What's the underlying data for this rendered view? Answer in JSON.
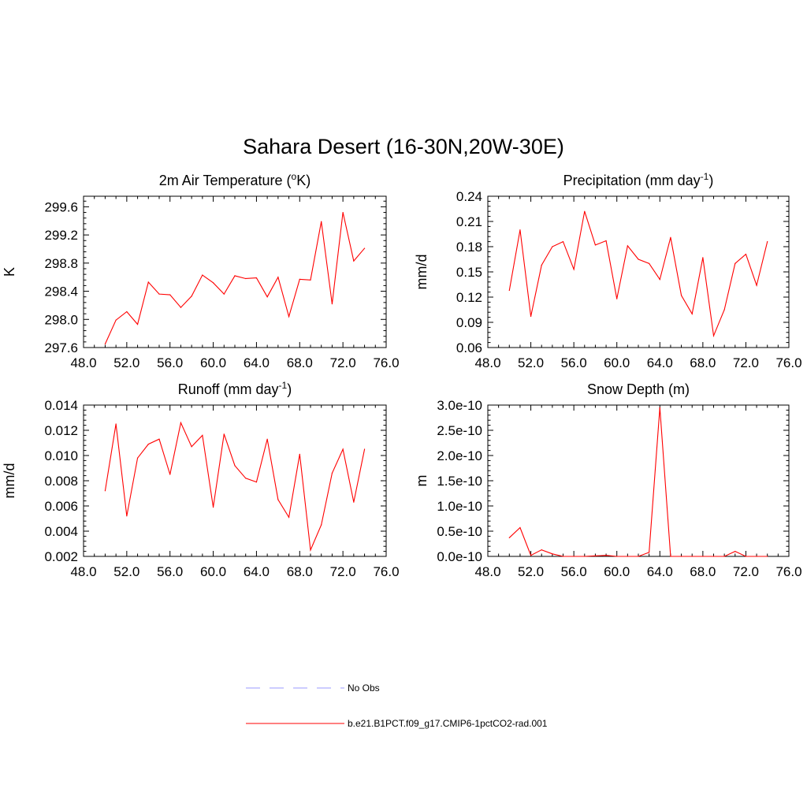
{
  "figure": {
    "title": "Sahara Desert (16-30N,20W-30E)"
  },
  "colors": {
    "series": "#ff0000",
    "obs": "#9999ff",
    "axis": "#000000"
  },
  "legend": {
    "items": [
      {
        "label": "No Obs",
        "style": "dashed",
        "color": "#9999ff"
      },
      {
        "label": "b.e21.B1PCT.f09_g17.CMIP6-1pctCO2-rad.001",
        "style": "solid",
        "color": "#ff0000"
      }
    ]
  },
  "chart_data": [
    {
      "type": "line",
      "title": "2m Air Temperature (",
      "title_sup": "o",
      "title_tail": "K)",
      "ylabel": "K",
      "xlim": [
        48,
        76
      ],
      "ylim": [
        297.6,
        299.75
      ],
      "xticks": [
        "48.0",
        "52.0",
        "56.0",
        "60.0",
        "64.0",
        "68.0",
        "72.0",
        "76.0"
      ],
      "yticks": [
        "297.6",
        "298.0",
        "298.4",
        "298.8",
        "299.2",
        "299.6"
      ],
      "x": [
        50,
        51,
        52,
        53,
        54,
        55,
        56,
        57,
        58,
        59,
        60,
        61,
        62,
        63,
        64,
        65,
        66,
        67,
        68,
        69,
        70,
        71,
        72,
        73,
        74
      ],
      "series": [
        {
          "values": [
            297.65,
            297.99,
            298.11,
            297.93,
            298.53,
            298.36,
            298.35,
            298.17,
            298.33,
            298.63,
            298.52,
            298.36,
            298.62,
            298.58,
            298.59,
            298.32,
            298.6,
            298.04,
            298.57,
            298.56,
            299.39,
            298.22,
            299.52,
            298.83,
            299.01
          ]
        }
      ]
    },
    {
      "type": "line",
      "title": "Precipitation (mm day",
      "title_sup": "-1",
      "title_tail": ")",
      "ylabel": "mm/d",
      "xlim": [
        48,
        76
      ],
      "ylim": [
        0.06,
        0.24
      ],
      "xticks": [
        "48.0",
        "52.0",
        "56.0",
        "60.0",
        "64.0",
        "68.0",
        "72.0",
        "76.0"
      ],
      "yticks": [
        "0.06",
        "0.09",
        "0.12",
        "0.15",
        "0.18",
        "0.21",
        "0.24"
      ],
      "x": [
        50,
        51,
        52,
        53,
        54,
        55,
        56,
        57,
        58,
        59,
        60,
        61,
        62,
        63,
        64,
        65,
        66,
        67,
        68,
        69,
        70,
        71,
        72,
        73,
        74
      ],
      "series": [
        {
          "values": [
            0.128,
            0.2,
            0.097,
            0.158,
            0.18,
            0.186,
            0.153,
            0.222,
            0.182,
            0.187,
            0.118,
            0.181,
            0.165,
            0.16,
            0.141,
            0.191,
            0.122,
            0.1,
            0.167,
            0.074,
            0.105,
            0.16,
            0.171,
            0.134,
            0.186
          ]
        }
      ]
    },
    {
      "type": "line",
      "title": "Runoff (mm day",
      "title_sup": "-1",
      "title_tail": ")",
      "ylabel": "mm/d",
      "xlim": [
        48,
        76
      ],
      "ylim": [
        0.002,
        0.014
      ],
      "xticks": [
        "48.0",
        "52.0",
        "56.0",
        "60.0",
        "64.0",
        "68.0",
        "72.0",
        "76.0"
      ],
      "yticks": [
        "0.002",
        "0.004",
        "0.006",
        "0.008",
        "0.010",
        "0.012",
        "0.014"
      ],
      "x": [
        50,
        51,
        52,
        53,
        54,
        55,
        56,
        57,
        58,
        59,
        60,
        61,
        62,
        63,
        64,
        65,
        66,
        67,
        68,
        69,
        70,
        71,
        72,
        73,
        74
      ],
      "series": [
        {
          "values": [
            0.0072,
            0.0125,
            0.0052,
            0.0098,
            0.0109,
            0.0113,
            0.0085,
            0.0126,
            0.0107,
            0.0116,
            0.0059,
            0.0117,
            0.0092,
            0.0082,
            0.0079,
            0.0113,
            0.0065,
            0.0051,
            0.0101,
            0.0025,
            0.0045,
            0.0086,
            0.0105,
            0.0063,
            0.0105
          ]
        }
      ]
    },
    {
      "type": "line",
      "title": "Snow Depth (m)",
      "title_sup": "",
      "title_tail": "",
      "ylabel": "m",
      "xlim": [
        48,
        76
      ],
      "ylim": [
        0,
        3e-10
      ],
      "xticks": [
        "48.0",
        "52.0",
        "56.0",
        "60.0",
        "64.0",
        "68.0",
        "72.0",
        "76.0"
      ],
      "yticks": [
        "0.0e-10",
        "0.5e-10",
        "1.0e-10",
        "1.5e-10",
        "2.0e-10",
        "2.5e-10",
        "3.0e-10"
      ],
      "x": [
        50,
        51,
        52,
        53,
        54,
        55,
        56,
        57,
        58,
        59,
        60,
        61,
        62,
        63,
        64,
        65,
        66,
        67,
        68,
        69,
        70,
        71,
        72,
        73,
        74
      ],
      "series": [
        {
          "values": [
            3.7e-11,
            5.7e-11,
            2e-12,
            1.3e-11,
            5e-12,
            0,
            0,
            0,
            1e-12,
            2e-12,
            0,
            0,
            0,
            8e-12,
            2.95e-10,
            0,
            0,
            0,
            0,
            0,
            0,
            1e-11,
            0,
            0,
            0
          ]
        }
      ]
    }
  ]
}
